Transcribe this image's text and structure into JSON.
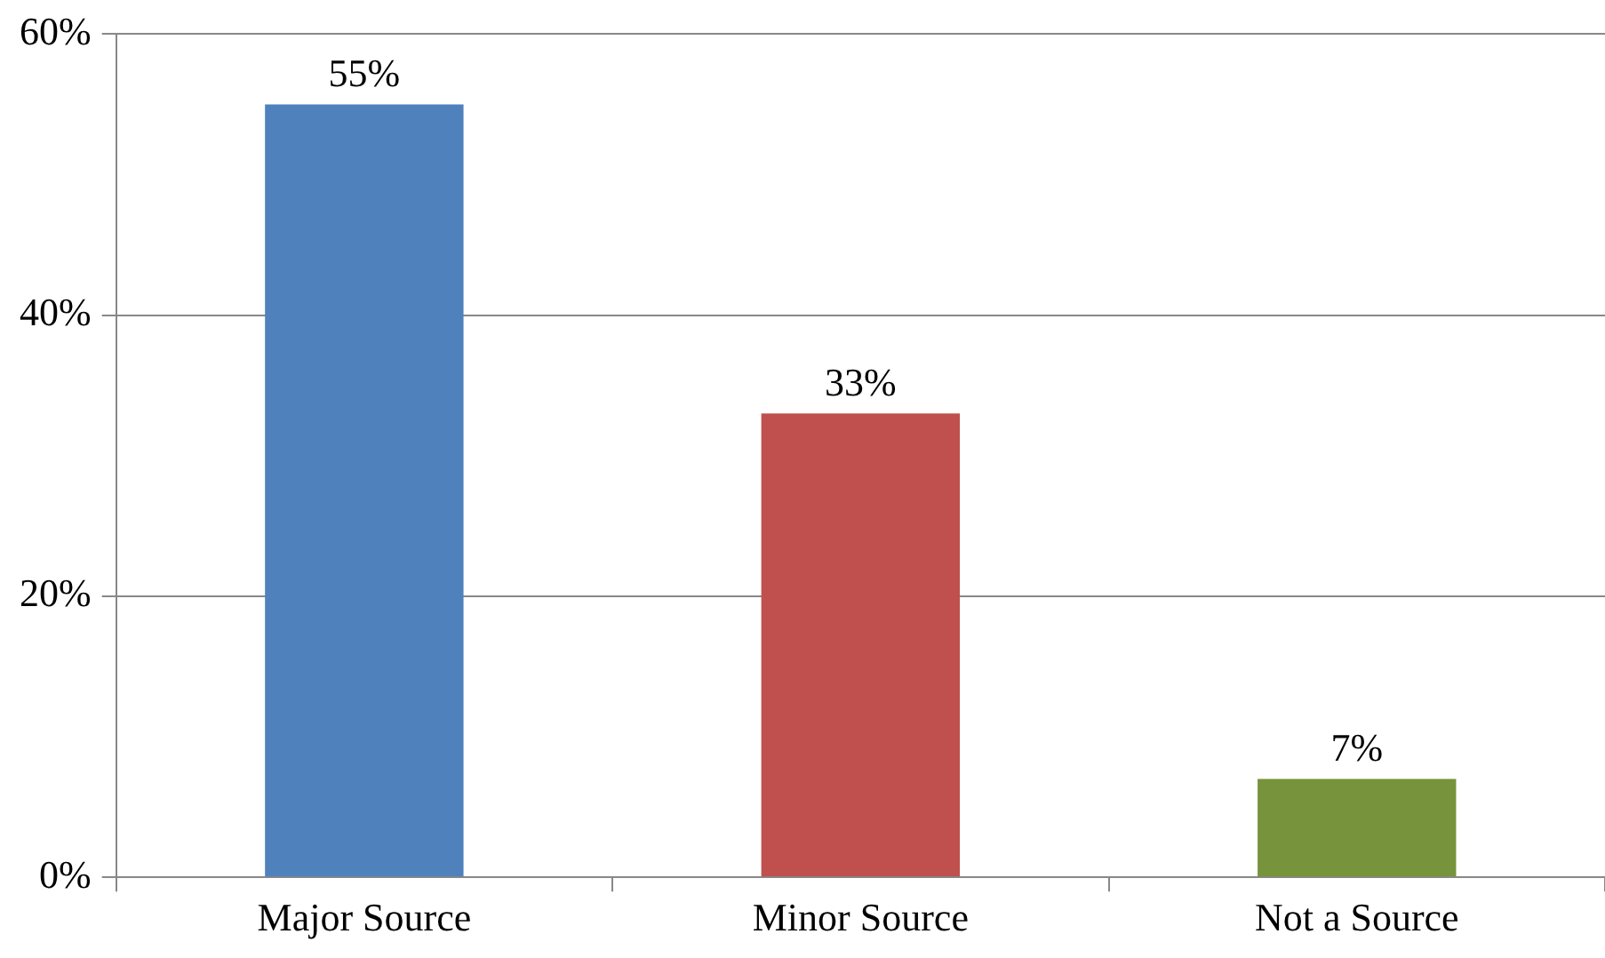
{
  "chart_data": {
    "type": "bar",
    "categories": [
      "Major Source",
      "Minor Source",
      "Not a Source"
    ],
    "values": [
      55,
      33,
      7
    ],
    "colors": [
      "#4f81bd",
      "#c0504d",
      "#77933c"
    ],
    "value_labels": [
      "55%",
      "33%",
      "7%"
    ],
    "ylim": [
      0,
      60
    ],
    "yticks": [
      {
        "value": 0,
        "label": "0%"
      },
      {
        "value": 20,
        "label": "20%"
      },
      {
        "value": 40,
        "label": "40%"
      },
      {
        "value": 60,
        "label": "60%"
      }
    ],
    "grid": "y",
    "legend": false
  }
}
